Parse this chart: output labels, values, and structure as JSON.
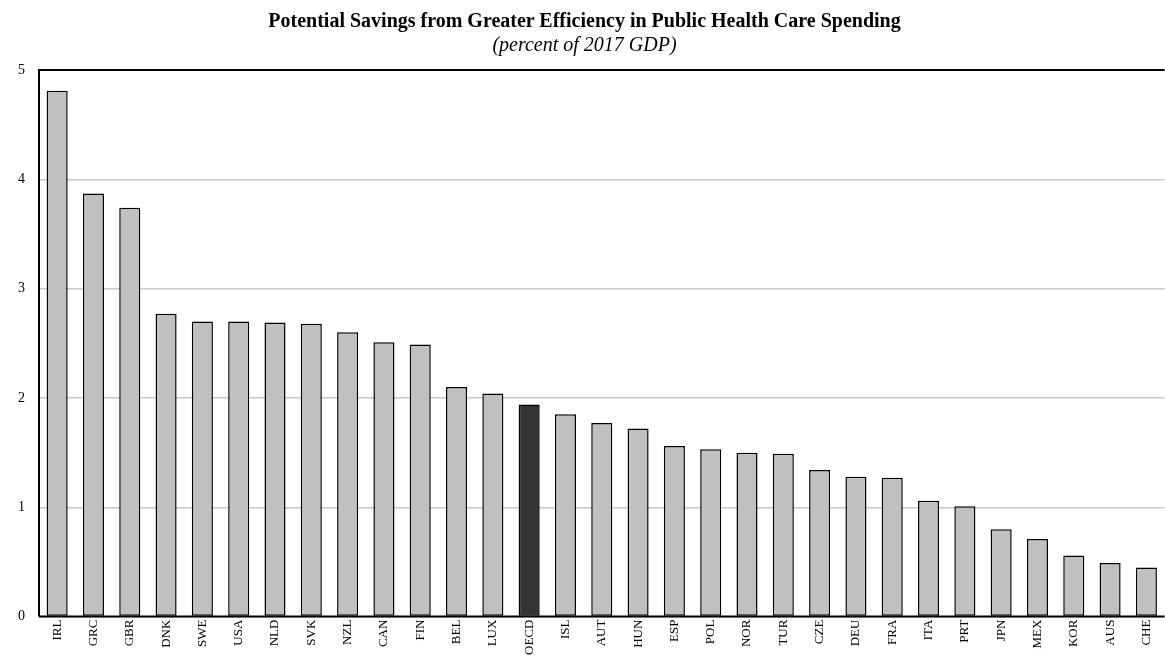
{
  "chart_data": {
    "type": "bar",
    "title": "Potential Savings from Greater Efficiency in Public Health Care Spending",
    "subtitle": "(percent of 2017 GDP)",
    "categories": [
      "IRL",
      "GRC",
      "GBR",
      "DNK",
      "SWE",
      "USA",
      "NLD",
      "SVK",
      "NZL",
      "CAN",
      "FIN",
      "BEL",
      "LUX",
      "OECD",
      "ISL",
      "AUT",
      "HUN",
      "ESP",
      "POL",
      "NOR",
      "TUR",
      "CZE",
      "DEU",
      "FRA",
      "ITA",
      "PRT",
      "JPN",
      "MEX",
      "KOR",
      "AUS",
      "CHE"
    ],
    "values": [
      4.81,
      3.87,
      3.74,
      2.77,
      2.7,
      2.7,
      2.69,
      2.68,
      2.6,
      2.51,
      2.49,
      2.1,
      2.04,
      1.94,
      1.85,
      1.77,
      1.72,
      1.56,
      1.53,
      1.5,
      1.49,
      1.34,
      1.28,
      1.27,
      1.06,
      1.01,
      0.8,
      0.71,
      0.56,
      0.49,
      0.45
    ],
    "colors": [
      "#c0c0c0",
      "#c0c0c0",
      "#c0c0c0",
      "#c0c0c0",
      "#c0c0c0",
      "#c0c0c0",
      "#c0c0c0",
      "#c0c0c0",
      "#c0c0c0",
      "#c0c0c0",
      "#c0c0c0",
      "#c0c0c0",
      "#c0c0c0",
      "#333333",
      "#c0c0c0",
      "#c0c0c0",
      "#c0c0c0",
      "#c0c0c0",
      "#c0c0c0",
      "#c0c0c0",
      "#c0c0c0",
      "#c0c0c0",
      "#c0c0c0",
      "#c0c0c0",
      "#c0c0c0",
      "#c0c0c0",
      "#c0c0c0",
      "#c0c0c0",
      "#c0c0c0",
      "#c0c0c0",
      "#c0c0c0"
    ],
    "ylim": [
      0,
      5
    ],
    "yticks": [
      0,
      1,
      2,
      3,
      4,
      5
    ],
    "grid": "y",
    "legend": false
  }
}
